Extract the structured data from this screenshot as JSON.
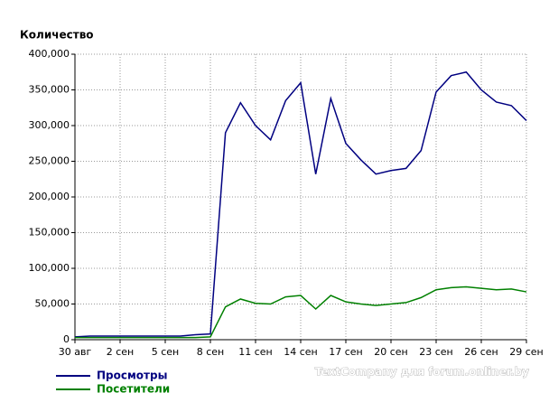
{
  "chart_data": {
    "type": "line",
    "title": "Количество",
    "categories": [
      "30 авг",
      null,
      null,
      "2 сен",
      null,
      null,
      "5 сен",
      null,
      null,
      "8 сен",
      null,
      null,
      "11 сен",
      null,
      null,
      "14 сен",
      null,
      null,
      "17 сен",
      null,
      null,
      "20 сен",
      null,
      null,
      "23 сен",
      null,
      null,
      "26 сен",
      null,
      null,
      "29 сен"
    ],
    "series": [
      {
        "name": "Просмотры",
        "color": "#000080",
        "values": [
          4000,
          5000,
          5000,
          5000,
          5000,
          5000,
          5000,
          5000,
          7000,
          8000,
          290000,
          332000,
          300000,
          280000,
          335000,
          360000,
          232000,
          338000,
          275000,
          252000,
          232000,
          237000,
          240000,
          265000,
          347000,
          370000,
          375000,
          350000,
          333000,
          328000,
          307000
        ]
      },
      {
        "name": "Посетители",
        "color": "#008000",
        "values": [
          3000,
          3000,
          3000,
          3000,
          3000,
          3000,
          3000,
          3000,
          3000,
          4000,
          46000,
          57000,
          51000,
          50000,
          60000,
          62000,
          43000,
          62000,
          53000,
          50000,
          48000,
          50000,
          52000,
          59000,
          70000,
          73000,
          74000,
          72000,
          70000,
          71000,
          67000
        ]
      }
    ],
    "ylim": [
      0,
      400000
    ],
    "yticks": [
      0,
      {
        "value": 50000,
        "label": "50,000"
      },
      {
        "value": 100000,
        "label": "100,000"
      },
      {
        "value": 150000,
        "label": "150,000"
      },
      {
        "value": 200000,
        "label": "200,000"
      },
      {
        "value": 250000,
        "label": "250,000"
      },
      {
        "value": 300000,
        "label": "300,000"
      },
      {
        "value": 350000,
        "label": "350,000"
      },
      {
        "value": 400000,
        "label": "400,000"
      }
    ],
    "grid": true,
    "watermark": "TextCompany для forum.onliner.by"
  }
}
